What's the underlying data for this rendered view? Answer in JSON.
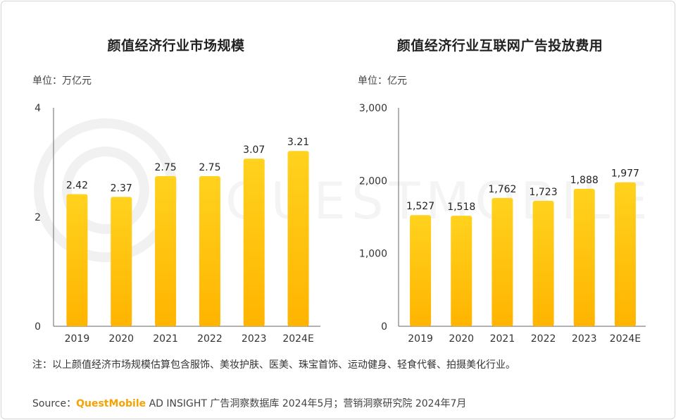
{
  "chart_data": [
    {
      "type": "bar",
      "title": "颜值经济行业市场规模",
      "unit_label": "单位：万亿元",
      "categories": [
        "2019",
        "2020",
        "2021",
        "2022",
        "2023",
        "2024E"
      ],
      "values": [
        2.42,
        2.37,
        2.75,
        2.75,
        3.07,
        3.21
      ],
      "value_labels": [
        "2.42",
        "2.37",
        "2.75",
        "2.75",
        "3.07",
        "3.21"
      ],
      "ylim": [
        0,
        4
      ],
      "yticks": [
        0,
        2,
        4
      ],
      "ytick_labels": [
        "0",
        "2",
        "4"
      ],
      "grid": false
    },
    {
      "type": "bar",
      "title": "颜值经济行业互联网广告投放费用",
      "unit_label": "单位：亿元",
      "categories": [
        "2019",
        "2020",
        "2021",
        "2022",
        "2023",
        "2024E"
      ],
      "values": [
        1527,
        1518,
        1762,
        1723,
        1888,
        1977
      ],
      "value_labels": [
        "1,527",
        "1,518",
        "1,762",
        "1,723",
        "1,888",
        "1,977"
      ],
      "ylim": [
        0,
        3000
      ],
      "yticks": [
        0,
        1000,
        2000,
        3000
      ],
      "ytick_labels": [
        "0",
        "1,000",
        "2,000",
        "3,000"
      ],
      "grid": false
    }
  ],
  "footer": {
    "note": "注：以上颜值经济市场规模估算包含服饰、美妆护肤、医美、珠宝首饰、运动健身、轻食代餐、拍摄美化行业。",
    "source_prefix": "Source：",
    "source_brand": "QuestMobile",
    "source_rest": " AD INSIGHT 广告洞察数据库 2024年5月；营销洞察研究院 2024年7月"
  },
  "watermark_text": "QUESTMOBILE",
  "colors": {
    "bar_top": "#ffd21e",
    "bar_bottom": "#ffb400",
    "axis": "#666666"
  }
}
